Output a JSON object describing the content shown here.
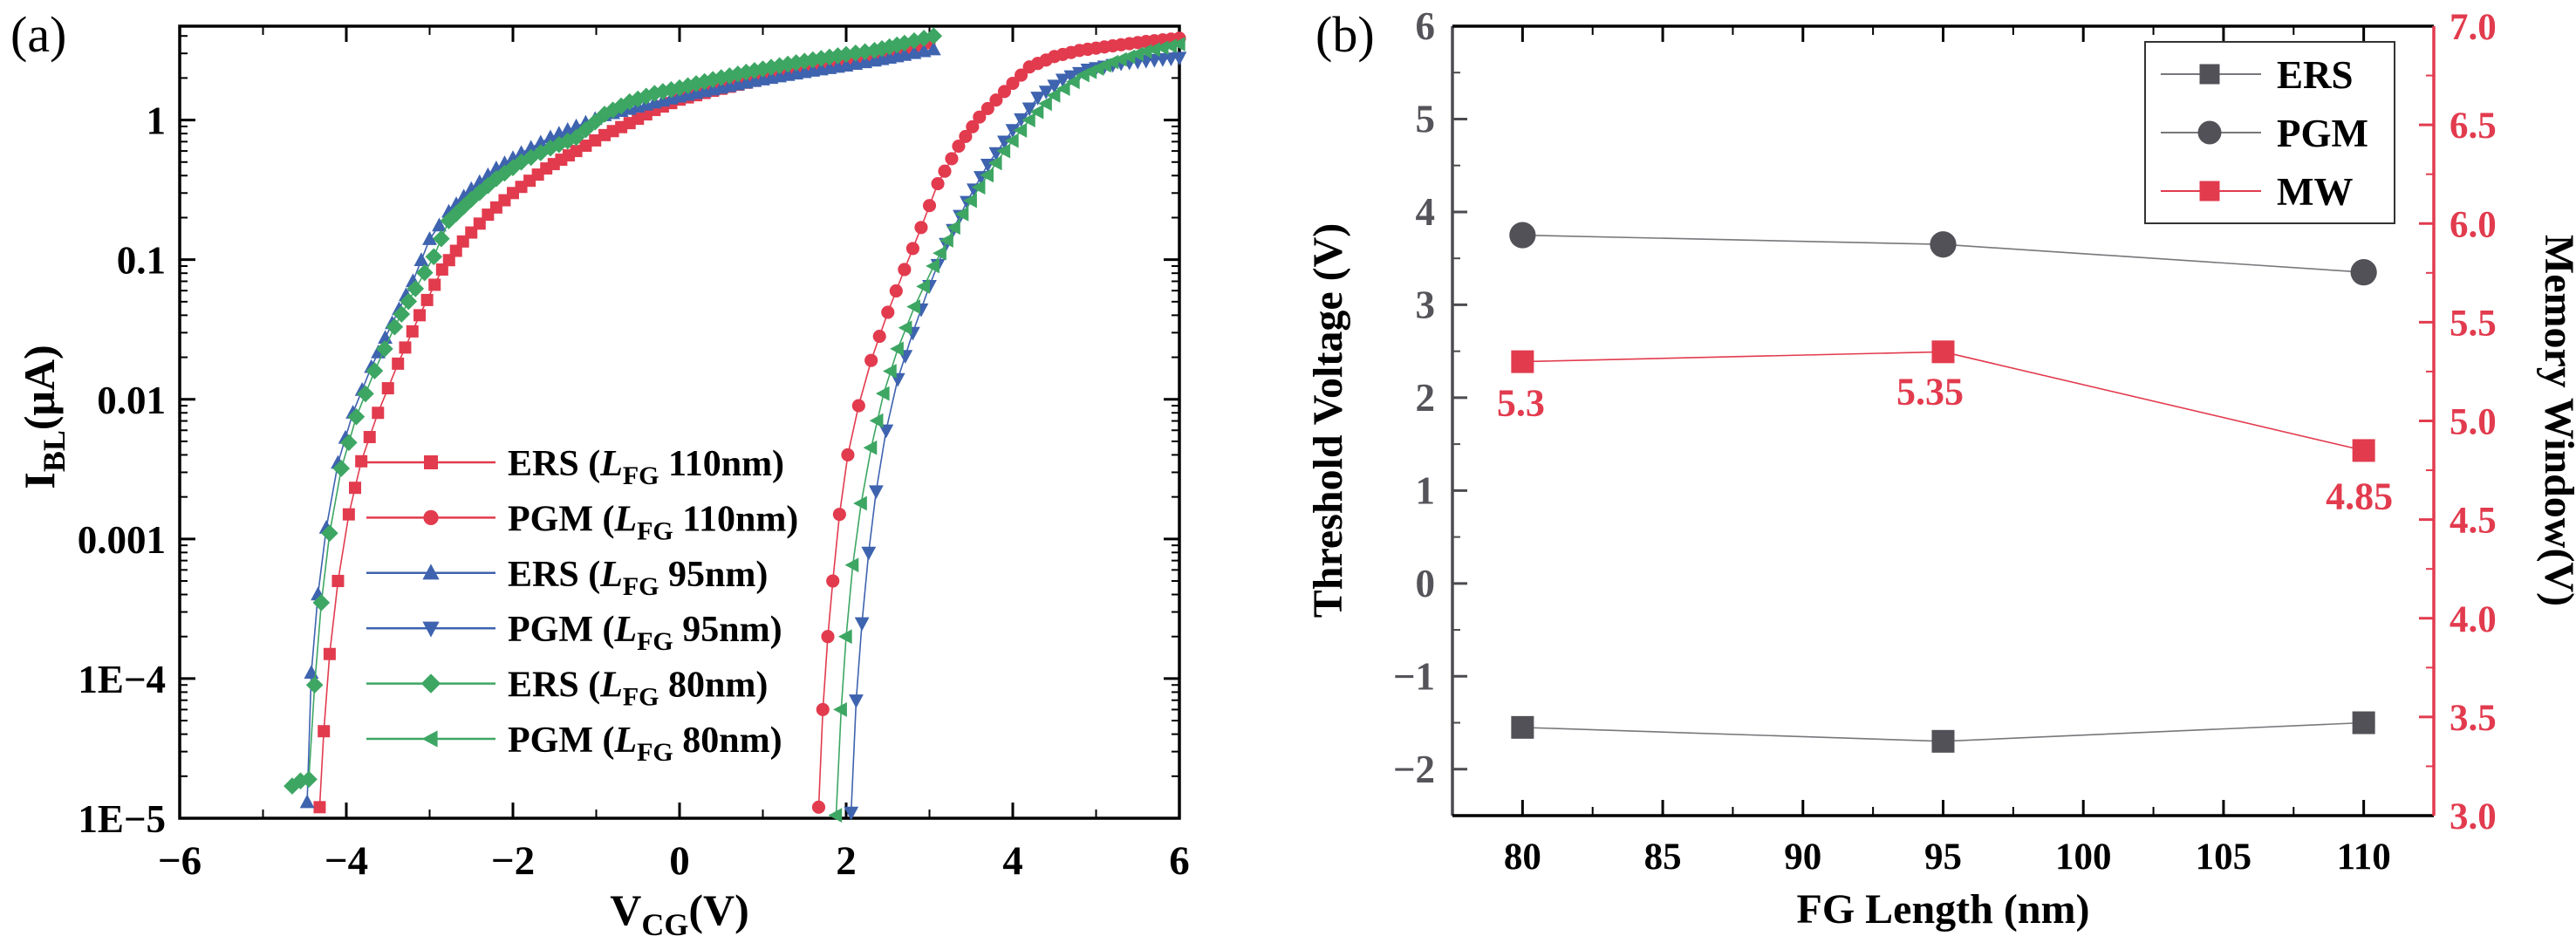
{
  "panels": {
    "a": {
      "label": "(a)"
    },
    "b": {
      "label": "(b)"
    }
  },
  "colors": {
    "red": "#e23b4e",
    "blue": "#3e63af",
    "green": "#3da663",
    "dark": "#515157",
    "gray_axis": "#4b4b51",
    "gray_label": "#54545a",
    "black": "#000000"
  },
  "chart_data": [
    {
      "id": "a",
      "type": "line",
      "x_scale": "linear",
      "y_scale": "log",
      "xlabel": {
        "main": "V",
        "sub": "CG",
        "suffix": "(V)"
      },
      "ylabel": {
        "main": "I",
        "sub": "BL",
        "suffix": "(μA)"
      },
      "xlim": [
        -6,
        6
      ],
      "ylim": [
        1e-05,
        4.7
      ],
      "grid": false,
      "legend_position": "center-left",
      "marker_step_V": 0.1,
      "xticks": [
        -6,
        -4,
        -2,
        0,
        2,
        4,
        6
      ],
      "xtick_labels": [
        "−6",
        "−4",
        "−2",
        "0",
        "2",
        "4",
        "6"
      ],
      "ytick_labels": [
        {
          "value": 1,
          "label": "1"
        },
        {
          "value": 0.1,
          "label": "0.1"
        },
        {
          "value": 0.01,
          "label": "0.01"
        },
        {
          "value": 0.001,
          "label": "0.001"
        },
        {
          "value": 0.0001,
          "label": "1E−4"
        },
        {
          "value": 1e-05,
          "label": "1E−5"
        }
      ],
      "series": [
        {
          "name": "ERS (LFG 110nm)",
          "state": "ERS",
          "lfg": "110nm",
          "color_key": "red",
          "marker": "square",
          "anchors": [
            [
              -4.32,
              1.2e-05
            ],
            [
              -4.27,
              4.2e-05
            ],
            [
              -4.2,
              0.00015
            ],
            [
              -4.1,
              0.0005
            ],
            [
              -3.97,
              0.0015
            ],
            [
              -3.82,
              0.0036
            ],
            [
              -3.62,
              0.008
            ],
            [
              -3.38,
              0.018
            ],
            [
              -3.12,
              0.04
            ],
            [
              -2.85,
              0.085
            ],
            [
              -2.6,
              0.135
            ],
            [
              -2.3,
              0.21
            ],
            [
              -2.0,
              0.3
            ],
            [
              -1.6,
              0.45
            ],
            [
              -1.24,
              0.6
            ],
            [
              -0.9,
              0.78
            ],
            [
              -0.6,
              0.95
            ],
            [
              -0.3,
              1.18
            ],
            [
              0,
              1.4
            ],
            [
              0.4,
              1.62
            ],
            [
              0.8,
              1.85
            ],
            [
              1.2,
              2.1
            ],
            [
              1.6,
              2.35
            ],
            [
              2.0,
              2.6
            ],
            [
              2.4,
              2.9
            ],
            [
              2.7,
              3.2
            ],
            [
              3.0,
              3.55
            ]
          ]
        },
        {
          "name": "PGM (LFG 110nm)",
          "state": "PGM",
          "lfg": "110nm",
          "color_key": "red",
          "marker": "circle",
          "anchors": [
            [
              1.67,
              1.2e-05
            ],
            [
              1.72,
              6e-05
            ],
            [
              1.78,
              0.0002
            ],
            [
              1.84,
              0.0005
            ],
            [
              1.92,
              0.0015
            ],
            [
              2.02,
              0.004
            ],
            [
              2.15,
              0.009
            ],
            [
              2.3,
              0.019
            ],
            [
              2.5,
              0.042
            ],
            [
              2.7,
              0.085
            ],
            [
              2.9,
              0.17
            ],
            [
              3.1,
              0.35
            ],
            [
              3.35,
              0.65
            ],
            [
              3.6,
              1.05
            ],
            [
              3.9,
              1.6
            ],
            [
              4.2,
              2.4
            ],
            [
              4.5,
              2.85
            ],
            [
              4.8,
              3.15
            ],
            [
              5.2,
              3.4
            ],
            [
              5.6,
              3.65
            ],
            [
              6.0,
              3.85
            ]
          ]
        },
        {
          "name": "ERS (LFG 95nm)",
          "state": "ERS",
          "lfg": "95nm",
          "color_key": "blue",
          "marker": "triangle-up",
          "anchors": [
            [
              -4.47,
              1.3e-05
            ],
            [
              -4.42,
              0.00011
            ],
            [
              -4.34,
              0.0004
            ],
            [
              -4.24,
              0.0012
            ],
            [
              -4.1,
              0.0035
            ],
            [
              -3.92,
              0.008
            ],
            [
              -3.7,
              0.017
            ],
            [
              -3.45,
              0.035
            ],
            [
              -3.2,
              0.07
            ],
            [
              -3.0,
              0.14
            ],
            [
              -2.77,
              0.22
            ],
            [
              -2.5,
              0.32
            ],
            [
              -2.2,
              0.45
            ],
            [
              -1.9,
              0.58
            ],
            [
              -1.55,
              0.75
            ],
            [
              -1.24,
              0.9
            ],
            [
              -0.9,
              1.08
            ],
            [
              -0.6,
              1.2
            ],
            [
              -0.3,
              1.33
            ],
            [
              0,
              1.47
            ],
            [
              0.4,
              1.65
            ],
            [
              0.8,
              1.85
            ],
            [
              1.2,
              2.05
            ],
            [
              1.6,
              2.25
            ],
            [
              2.0,
              2.45
            ],
            [
              2.34,
              2.66
            ],
            [
              2.7,
              2.92
            ],
            [
              3.05,
              3.2
            ]
          ]
        },
        {
          "name": "PGM (LFG 95nm)",
          "state": "PGM",
          "lfg": "95nm",
          "color_key": "blue",
          "marker": "triangle-down",
          "anchors": [
            [
              2.06,
              1.1e-05
            ],
            [
              2.12,
              7e-05
            ],
            [
              2.19,
              0.00025
            ],
            [
              2.27,
              0.0008
            ],
            [
              2.36,
              0.0022
            ],
            [
              2.48,
              0.006
            ],
            [
              2.62,
              0.014
            ],
            [
              2.8,
              0.03
            ],
            [
              3.0,
              0.065
            ],
            [
              3.2,
              0.13
            ],
            [
              3.45,
              0.26
            ],
            [
              3.7,
              0.48
            ],
            [
              4.0,
              0.85
            ],
            [
              4.3,
              1.45
            ],
            [
              4.6,
              1.95
            ],
            [
              4.9,
              2.3
            ],
            [
              5.3,
              2.55
            ],
            [
              5.7,
              2.7
            ],
            [
              6.0,
              2.8
            ]
          ]
        },
        {
          "name": "ERS (LFG 80nm)",
          "state": "ERS",
          "lfg": "80nm",
          "color_key": "green",
          "marker": "diamond",
          "anchors": [
            [
              -4.65,
              1.7e-05
            ],
            [
              -4.55,
              1.85e-05
            ],
            [
              -4.45,
              1.9e-05
            ],
            [
              -4.38,
              9e-05
            ],
            [
              -4.3,
              0.00035
            ],
            [
              -4.2,
              0.0011
            ],
            [
              -4.06,
              0.0032
            ],
            [
              -3.88,
              0.0075
            ],
            [
              -3.66,
              0.016
            ],
            [
              -3.42,
              0.033
            ],
            [
              -3.17,
              0.062
            ],
            [
              -2.95,
              0.105
            ],
            [
              -2.77,
              0.19
            ],
            [
              -2.5,
              0.27
            ],
            [
              -2.2,
              0.38
            ],
            [
              -1.9,
              0.5
            ],
            [
              -1.55,
              0.63
            ],
            [
              -1.24,
              0.75
            ],
            [
              -0.9,
              1.1
            ],
            [
              -0.6,
              1.35
            ],
            [
              -0.3,
              1.55
            ],
            [
              0,
              1.7
            ],
            [
              0.4,
              1.95
            ],
            [
              0.8,
              2.2
            ],
            [
              1.2,
              2.45
            ],
            [
              1.6,
              2.7
            ],
            [
              2.0,
              2.95
            ],
            [
              2.34,
              3.15
            ],
            [
              2.7,
              3.55
            ],
            [
              3.05,
              4.0
            ]
          ]
        },
        {
          "name": "PGM (LFG 80nm)",
          "state": "PGM",
          "lfg": "80nm",
          "color_key": "green",
          "marker": "triangle-left",
          "anchors": [
            [
              1.88,
              1.05e-05
            ],
            [
              1.94,
              6e-05
            ],
            [
              2.0,
              0.0002
            ],
            [
              2.08,
              0.00065
            ],
            [
              2.18,
              0.0018
            ],
            [
              2.3,
              0.0045
            ],
            [
              2.45,
              0.011
            ],
            [
              2.62,
              0.023
            ],
            [
              2.82,
              0.046
            ],
            [
              3.05,
              0.09
            ],
            [
              3.3,
              0.17
            ],
            [
              3.6,
              0.33
            ],
            [
              3.9,
              0.6
            ],
            [
              4.2,
              1.0
            ],
            [
              4.5,
              1.5
            ],
            [
              4.85,
              2.1
            ],
            [
              5.2,
              2.6
            ],
            [
              5.6,
              3.1
            ],
            [
              6.0,
              3.5
            ]
          ]
        }
      ]
    },
    {
      "id": "b",
      "type": "line",
      "xlabel": "FG Length (nm)",
      "ylabel_left": "Threshold Voltage (V)",
      "ylabel_right": "Memory Window(V)",
      "xlim": [
        77.5,
        112.5
      ],
      "ylim_left": [
        -2.5,
        6
      ],
      "ylim_right": [
        3.0,
        7.0
      ],
      "grid": false,
      "legend_position": "top-right",
      "xticks": [
        80,
        85,
        90,
        95,
        100,
        105,
        110
      ],
      "yticks_left": [
        6,
        5,
        4,
        3,
        2,
        1,
        0,
        -1,
        -2
      ],
      "ytick_left_labels": [
        "6",
        "5",
        "4",
        "3",
        "2",
        "1",
        "0",
        "−1",
        "−2"
      ],
      "yticks_right": [
        7.0,
        6.5,
        6.0,
        5.5,
        5.0,
        4.5,
        4.0,
        3.5,
        3.0
      ],
      "ytick_right_labels": [
        "7.0",
        "6.5",
        "6.0",
        "5.5",
        "5.0",
        "4.5",
        "4.0",
        "3.5",
        "3.0"
      ],
      "legend": [
        "ERS",
        "PGM",
        "MW"
      ],
      "series": [
        {
          "name": "ERS",
          "axis": "left",
          "color_key": "dark",
          "marker": "square",
          "x": [
            80,
            95,
            110
          ],
          "y": [
            -1.55,
            -1.7,
            -1.5
          ]
        },
        {
          "name": "PGM",
          "axis": "left",
          "color_key": "dark",
          "marker": "circle",
          "x": [
            80,
            95,
            110
          ],
          "y": [
            3.75,
            3.65,
            3.35
          ]
        },
        {
          "name": "MW",
          "axis": "right",
          "color_key": "red",
          "marker": "square",
          "x": [
            80,
            95,
            110
          ],
          "y": [
            5.3,
            5.35,
            4.85
          ],
          "point_labels": [
            {
              "text": "5.3",
              "dx": -2,
              "dy": 62
            },
            {
              "text": "5.35",
              "dx": -15,
              "dy": 60
            },
            {
              "text": "4.85",
              "dx": -5,
              "dy": 67
            }
          ]
        }
      ]
    }
  ]
}
